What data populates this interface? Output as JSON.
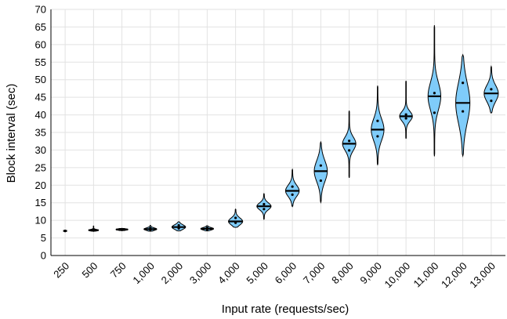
{
  "chart_data": {
    "type": "violin",
    "xlabel": "Input rate (requests/sec)",
    "ylabel": "Block interval (sec)",
    "ylim": [
      0,
      70
    ],
    "yticks": [
      0,
      5,
      10,
      15,
      20,
      25,
      30,
      35,
      40,
      45,
      50,
      55,
      60,
      65,
      70
    ],
    "grid": true,
    "colors": {
      "violin_fill": "#7fccfa",
      "outline": "#000000",
      "grid": "#e2e2e2"
    },
    "categories": [
      "250",
      "500",
      "750",
      "1,000",
      "2,000",
      "3,000",
      "4,000",
      "5,000",
      "6,000",
      "7,000",
      "8,000",
      "9,000",
      "10,000",
      "11,000",
      "12,000",
      "13,000"
    ],
    "distributions": [
      {
        "min": 7.0,
        "max": 7.0,
        "median": 7.0,
        "q1": 7.0,
        "q3": 7.0,
        "max_half_width_rel": 0.02
      },
      {
        "min": 6.9,
        "max": 8.4,
        "median": 7.2,
        "q1": 7.1,
        "q3": 7.3,
        "max_half_width_rel": 0.35
      },
      {
        "min": 7.1,
        "max": 7.7,
        "median": 7.4,
        "q1": 7.3,
        "q3": 7.5,
        "max_half_width_rel": 0.42
      },
      {
        "min": 6.9,
        "max": 8.6,
        "median": 7.5,
        "q1": 7.3,
        "q3": 7.8,
        "max_half_width_rel": 0.45
      },
      {
        "min": 7.0,
        "max": 9.6,
        "median": 8.1,
        "q1": 7.7,
        "q3": 8.6,
        "max_half_width_rel": 0.48
      },
      {
        "min": 7.0,
        "max": 8.5,
        "median": 7.6,
        "q1": 7.4,
        "q3": 7.9,
        "max_half_width_rel": 0.45
      },
      {
        "min": 8.0,
        "max": 13.2,
        "median": 9.7,
        "q1": 9.3,
        "q3": 10.7,
        "max_half_width_rel": 0.5
      },
      {
        "min": 10.3,
        "max": 17.6,
        "median": 14.0,
        "q1": 13.2,
        "q3": 14.6,
        "max_half_width_rel": 0.5
      },
      {
        "min": 13.9,
        "max": 24.5,
        "median": 18.4,
        "q1": 17.3,
        "q3": 19.6,
        "max_half_width_rel": 0.48
      },
      {
        "min": 15.1,
        "max": 32.3,
        "median": 24.0,
        "q1": 21.3,
        "q3": 25.6,
        "max_half_width_rel": 0.46
      },
      {
        "min": 22.1,
        "max": 41.2,
        "median": 31.8,
        "q1": 29.9,
        "q3": 32.6,
        "max_half_width_rel": 0.47
      },
      {
        "min": 25.7,
        "max": 48.3,
        "median": 35.8,
        "q1": 33.9,
        "q3": 38.3,
        "max_half_width_rel": 0.45
      },
      {
        "min": 33.2,
        "max": 49.7,
        "median": 39.6,
        "q1": 39.0,
        "q3": 40.1,
        "max_half_width_rel": 0.45
      },
      {
        "min": 28.2,
        "max": 65.5,
        "median": 45.3,
        "q1": 40.6,
        "q3": 46.2,
        "max_half_width_rel": 0.45
      },
      {
        "min": 28.3,
        "max": 57.1,
        "median": 43.4,
        "q1": 41.0,
        "q3": 49.1,
        "max_half_width_rel": 0.5
      },
      {
        "min": 40.5,
        "max": 53.8,
        "median": 46.1,
        "q1": 44.0,
        "q3": 47.3,
        "max_half_width_rel": 0.5
      }
    ]
  }
}
